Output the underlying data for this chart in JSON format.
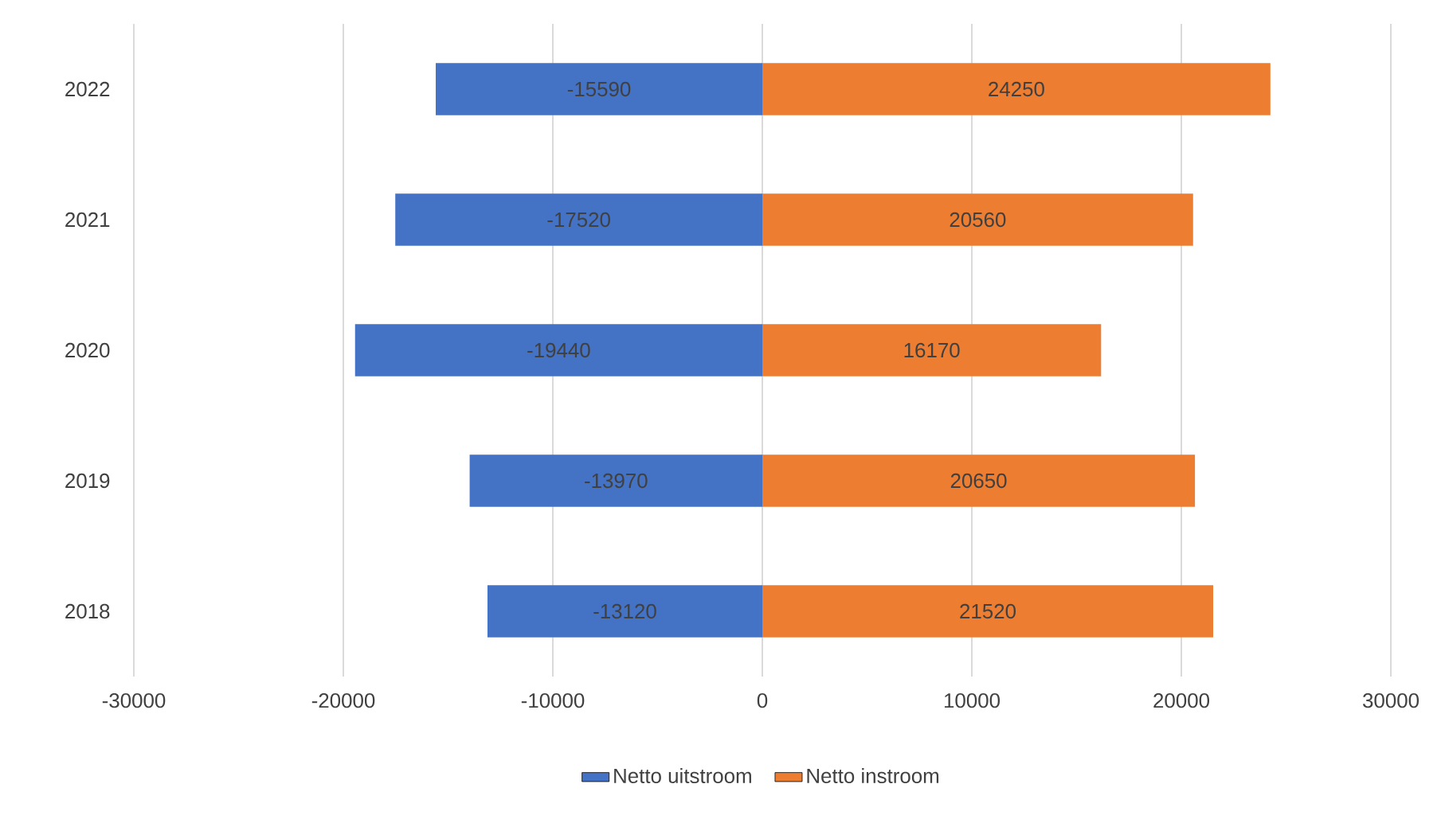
{
  "chart_data": {
    "type": "bar",
    "orientation": "horizontal",
    "stacked": true,
    "data_labels": true,
    "grid": "x",
    "legend": "bottom",
    "categories": [
      "2022",
      "2021",
      "2020",
      "2019",
      "2018"
    ],
    "series": [
      {
        "name": "Netto uitstroom",
        "color": "#4472c4",
        "values": [
          -15590,
          -17520,
          -19440,
          -13970,
          -13120
        ]
      },
      {
        "name": "Netto instroom",
        "color": "#ed7d31",
        "values": [
          24250,
          20560,
          16170,
          20650,
          21520
        ]
      }
    ],
    "xlim": [
      -30000,
      30000
    ],
    "xticks": [
      -30000,
      -20000,
      -10000,
      0,
      10000,
      20000,
      30000
    ]
  }
}
